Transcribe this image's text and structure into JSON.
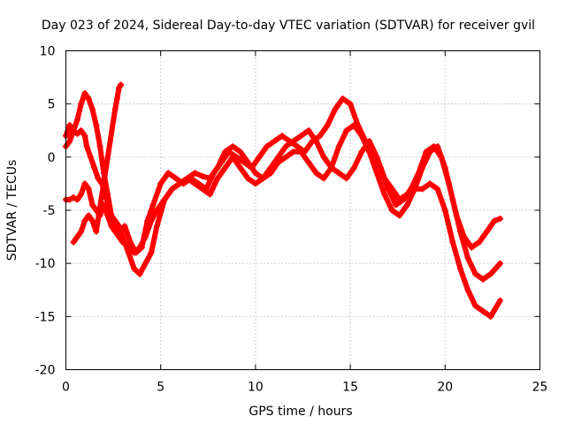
{
  "chart_data": {
    "type": "scatter",
    "title": "Day 023 of 2024, Sidereal Day-to-day VTEC variation (SDTVAR) for receiver gvil",
    "xlabel": "GPS time / hours",
    "ylabel": "SDTVAR / TECUs",
    "xlim": [
      0,
      25
    ],
    "ylim": [
      -20,
      10
    ],
    "xticks": [
      0,
      5,
      10,
      15,
      20,
      25
    ],
    "yticks": [
      -20,
      -15,
      -10,
      -5,
      0,
      5,
      10
    ],
    "grid": true,
    "marker": "+",
    "color": "#ff0000",
    "series": [
      {
        "x": [
          0.0,
          0.2,
          0.4,
          0.6,
          0.8,
          1.0,
          1.1,
          1.3,
          1.5,
          1.7,
          1.9,
          2.1,
          2.3,
          2.6,
          2.9,
          3.1,
          3.4,
          3.7,
          4.0,
          4.3,
          4.6,
          5.0,
          5.4,
          5.8,
          6.2,
          6.6,
          7.0,
          7.4,
          7.8,
          8.2,
          8.6,
          9.0,
          9.4,
          9.8,
          10.2,
          10.6,
          11.0,
          11.4,
          11.8,
          12.2,
          12.6,
          13.0,
          13.4,
          13.8,
          14.2,
          14.6,
          15.0,
          15.4,
          15.8,
          16.2,
          16.6,
          17.0,
          17.4,
          17.8,
          18.2,
          18.6,
          19.0,
          19.4,
          19.8,
          20.2,
          20.6,
          21.0,
          21.4,
          21.8,
          22.2,
          22.6,
          22.9
        ],
        "y": [
          2.0,
          3.0,
          2.5,
          2.2,
          2.5,
          2.0,
          1.0,
          0.0,
          -1.0,
          -2.0,
          -2.5,
          -3.5,
          -5.0,
          -6.5,
          -7.0,
          -6.5,
          -8.0,
          -9.0,
          -8.5,
          -6.0,
          -4.5,
          -2.5,
          -1.5,
          -2.0,
          -2.5,
          -2.0,
          -2.5,
          -3.0,
          -1.5,
          -0.5,
          0.5,
          0.0,
          -0.5,
          -1.0,
          0.0,
          1.0,
          1.5,
          2.0,
          1.5,
          1.0,
          0.5,
          1.5,
          2.0,
          3.0,
          4.5,
          5.5,
          5.0,
          3.0,
          1.5,
          0.5,
          -1.0,
          -3.0,
          -4.5,
          -4.0,
          -3.0,
          -1.5,
          0.5,
          1.0,
          0.0,
          -2.5,
          -5.5,
          -7.5,
          -8.5,
          -8.0,
          -7.0,
          -6.0,
          -5.8
        ]
      },
      {
        "x": [
          0.0,
          0.2,
          0.4,
          0.6,
          0.8,
          1.0,
          1.2,
          1.4,
          1.6,
          1.8,
          2.0,
          2.2,
          2.4,
          2.6,
          2.8,
          3.0,
          3.3,
          3.6,
          3.9,
          4.2,
          4.5,
          4.8,
          5.2,
          5.6,
          6.0,
          6.4,
          6.8,
          7.2,
          7.6,
          8.0,
          8.4,
          8.8,
          9.2,
          9.6,
          10.0,
          10.4,
          10.8,
          11.2,
          11.6,
          12.0,
          12.4,
          12.8,
          13.2,
          13.6,
          14.0,
          14.4,
          14.8,
          15.2,
          15.6,
          16.0,
          16.4,
          16.8,
          17.2,
          17.6,
          18.0,
          18.4,
          18.8,
          19.2,
          19.6,
          20.0,
          20.4,
          20.8,
          21.2,
          21.6,
          22.0,
          22.4,
          22.9
        ],
        "y": [
          1.0,
          1.5,
          2.5,
          3.5,
          5.0,
          6.0,
          5.5,
          4.5,
          3.0,
          1.0,
          -1.5,
          -3.5,
          -5.5,
          -6.0,
          -6.5,
          -7.5,
          -9.0,
          -10.5,
          -11.0,
          -10.0,
          -9.0,
          -6.5,
          -4.0,
          -3.0,
          -2.5,
          -2.0,
          -1.5,
          -1.8,
          -2.0,
          -1.0,
          0.5,
          1.0,
          0.5,
          -0.5,
          -1.5,
          -2.0,
          -1.5,
          -0.5,
          0.0,
          0.5,
          0.5,
          -0.5,
          -1.5,
          -2.0,
          -1.0,
          1.0,
          2.5,
          3.0,
          2.0,
          0.5,
          -1.5,
          -3.5,
          -5.0,
          -5.5,
          -4.5,
          -3.0,
          -1.0,
          0.5,
          1.0,
          -1.0,
          -4.0,
          -7.0,
          -9.5,
          -11.0,
          -11.5,
          -11.0,
          -10.0
        ]
      },
      {
        "x": [
          0.0,
          0.2,
          0.4,
          0.6,
          0.8,
          1.0,
          1.2,
          1.4,
          1.6,
          1.8,
          2.0,
          2.2,
          2.4,
          2.6,
          2.8,
          3.0,
          3.3,
          3.6,
          3.9,
          4.2,
          4.5,
          4.8,
          5.2,
          5.6,
          6.0,
          6.4,
          6.8,
          7.2,
          7.6,
          8.0,
          8.4,
          8.8,
          9.2,
          9.6,
          10.0,
          10.4,
          10.8,
          11.2,
          11.6,
          12.0,
          12.4,
          12.8,
          13.2,
          13.6,
          14.0,
          14.4,
          14.8,
          15.2,
          15.6,
          16.0,
          16.4,
          16.8,
          17.2,
          17.6,
          18.0,
          18.4,
          18.8,
          19.2,
          19.6,
          20.0,
          20.4,
          20.8,
          21.2,
          21.6,
          22.0,
          22.4,
          22.9
        ],
        "y": [
          -4.0,
          -4.0,
          -3.8,
          -4.0,
          -3.5,
          -2.5,
          -3.0,
          -4.5,
          -5.0,
          -5.5,
          -4.5,
          -5.5,
          -6.5,
          -7.0,
          -7.5,
          -8.0,
          -8.5,
          -9.0,
          -8.5,
          -7.5,
          -6.0,
          -5.0,
          -4.0,
          -3.0,
          -2.5,
          -2.0,
          -2.5,
          -3.0,
          -3.5,
          -2.0,
          -1.0,
          0.0,
          -1.0,
          -2.0,
          -2.5,
          -2.0,
          -1.0,
          0.0,
          1.0,
          1.5,
          2.0,
          2.5,
          1.5,
          0.0,
          -1.0,
          -1.5,
          -2.0,
          -1.0,
          0.5,
          1.5,
          0.0,
          -2.0,
          -3.0,
          -4.0,
          -3.5,
          -3.0,
          -3.0,
          -2.5,
          -3.0,
          -5.0,
          -8.0,
          -10.5,
          -12.5,
          -14.0,
          -14.5,
          -15.0,
          -13.5
        ]
      },
      {
        "x": [
          0.4,
          0.6,
          0.8,
          1.0,
          1.2,
          1.4,
          1.6,
          2.6,
          2.7,
          2.8,
          2.9
        ],
        "y": [
          -8.0,
          -7.5,
          -7.0,
          -6.0,
          -5.5,
          -6.0,
          -7.0,
          4.5,
          5.5,
          6.5,
          6.8
        ]
      }
    ]
  }
}
